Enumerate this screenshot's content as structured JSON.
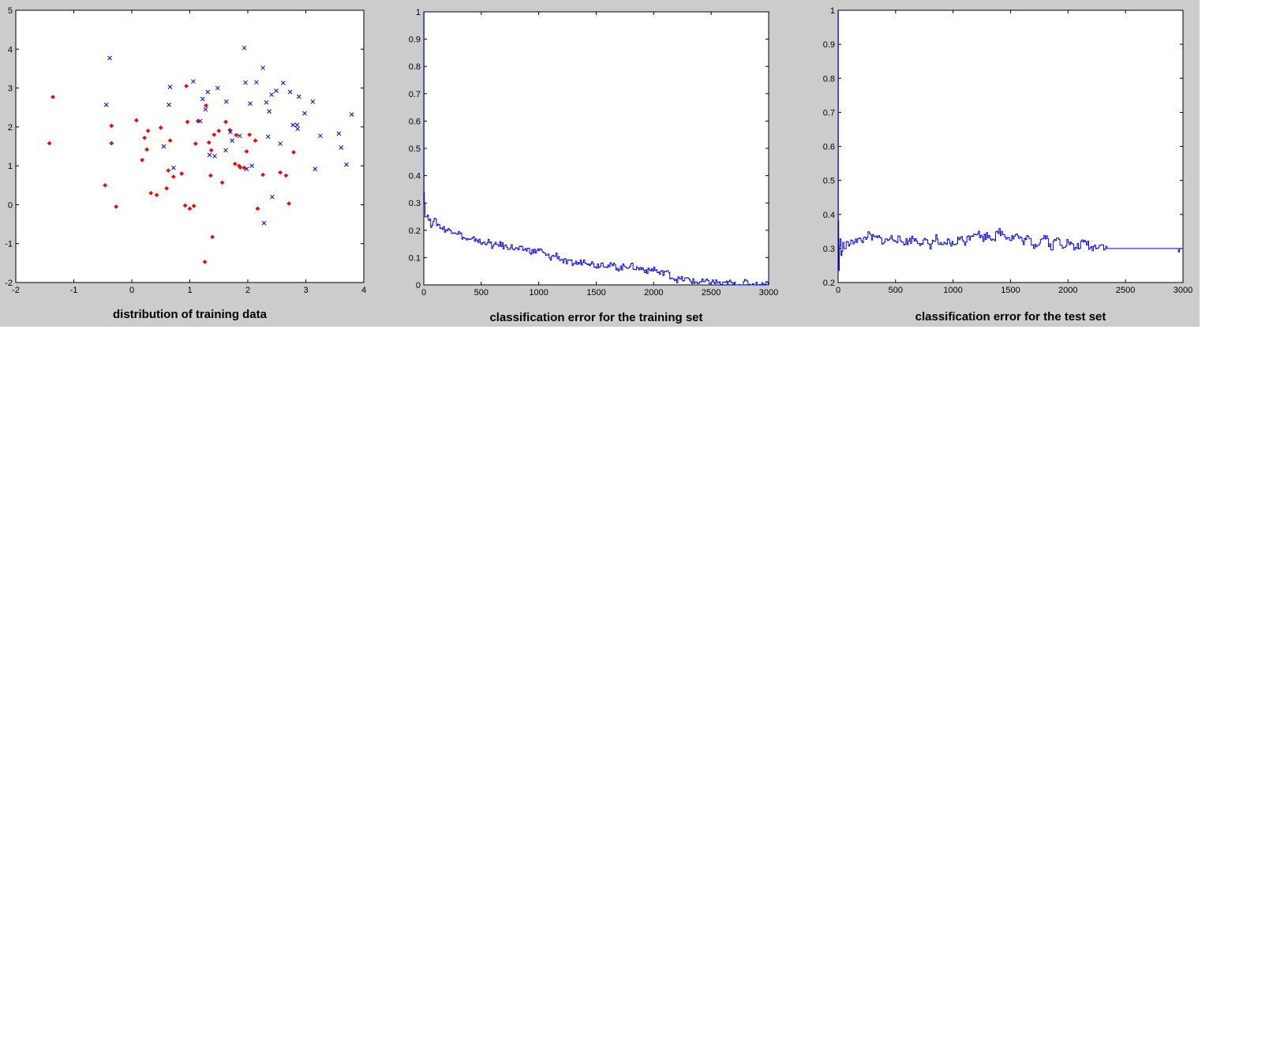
{
  "chart_data": [
    {
      "type": "scatter",
      "title": "",
      "xlabel": "distribution of training data",
      "ylabel": "",
      "xlim": [
        -2,
        4
      ],
      "ylim": [
        -2,
        5
      ],
      "xticks": [
        "-2",
        "-1",
        "0",
        "1",
        "2",
        "3",
        "4"
      ],
      "yticks": [
        "-2",
        "-1",
        "0",
        "1",
        "2",
        "3",
        "4",
        "5"
      ],
      "grid": false,
      "series": [
        {
          "marker": "dot",
          "color": "#ff0000",
          "points": [
            [
              -1.42,
              1.58
            ],
            [
              -1.36,
              2.77
            ],
            [
              -0.46,
              0.5
            ],
            [
              -0.35,
              2.03
            ],
            [
              -0.35,
              1.58
            ],
            [
              -0.27,
              -0.05
            ],
            [
              0.08,
              2.17
            ],
            [
              0.18,
              1.15
            ],
            [
              0.22,
              1.72
            ],
            [
              0.26,
              1.42
            ],
            [
              0.28,
              1.9
            ],
            [
              0.33,
              0.3
            ],
            [
              0.43,
              0.25
            ],
            [
              0.5,
              1.98
            ],
            [
              0.6,
              0.42
            ],
            [
              0.63,
              0.88
            ],
            [
              0.66,
              1.65
            ],
            [
              0.72,
              0.72
            ],
            [
              0.86,
              0.8
            ],
            [
              0.92,
              -0.02
            ],
            [
              0.94,
              3.05
            ],
            [
              0.96,
              2.13
            ],
            [
              1.0,
              -0.1
            ],
            [
              1.07,
              -0.03
            ],
            [
              1.1,
              1.57
            ],
            [
              1.14,
              2.15
            ],
            [
              1.26,
              -1.47
            ],
            [
              1.28,
              2.55
            ],
            [
              1.33,
              1.6
            ],
            [
              1.36,
              0.75
            ],
            [
              1.37,
              1.4
            ],
            [
              1.39,
              -0.83
            ],
            [
              1.42,
              1.8
            ],
            [
              1.5,
              1.9
            ],
            [
              1.56,
              0.57
            ],
            [
              1.62,
              2.13
            ],
            [
              1.69,
              1.92
            ],
            [
              1.78,
              1.05
            ],
            [
              1.8,
              1.79
            ],
            [
              1.85,
              1.0
            ],
            [
              1.87,
              0.96
            ],
            [
              1.94,
              0.95
            ],
            [
              1.98,
              1.37
            ],
            [
              2.03,
              1.8
            ],
            [
              2.13,
              1.65
            ],
            [
              2.17,
              -0.1
            ],
            [
              2.26,
              0.77
            ],
            [
              2.56,
              0.83
            ],
            [
              2.66,
              0.75
            ],
            [
              2.71,
              0.03
            ],
            [
              2.79,
              1.35
            ]
          ]
        },
        {
          "marker": "x",
          "color": "#0000ff",
          "points": [
            [
              -0.44,
              2.57
            ],
            [
              -0.38,
              3.77
            ],
            [
              0.55,
              1.5
            ],
            [
              0.64,
              2.57
            ],
            [
              0.66,
              3.03
            ],
            [
              0.72,
              0.95
            ],
            [
              1.06,
              3.17
            ],
            [
              1.18,
              2.15
            ],
            [
              1.22,
              2.72
            ],
            [
              1.27,
              2.45
            ],
            [
              1.31,
              2.9
            ],
            [
              1.34,
              1.28
            ],
            [
              1.43,
              1.25
            ],
            [
              1.48,
              3.0
            ],
            [
              1.62,
              1.4
            ],
            [
              1.63,
              2.65
            ],
            [
              1.7,
              1.87
            ],
            [
              1.73,
              1.65
            ],
            [
              1.86,
              1.77
            ],
            [
              1.94,
              4.03
            ],
            [
              1.96,
              3.14
            ],
            [
              1.98,
              0.92
            ],
            [
              2.04,
              2.6
            ],
            [
              2.07,
              1.0
            ],
            [
              2.15,
              3.15
            ],
            [
              2.26,
              3.52
            ],
            [
              2.28,
              -0.47
            ],
            [
              2.32,
              2.63
            ],
            [
              2.35,
              1.75
            ],
            [
              2.37,
              2.4
            ],
            [
              2.41,
              2.83
            ],
            [
              2.42,
              0.2
            ],
            [
              2.49,
              2.93
            ],
            [
              2.56,
              1.57
            ],
            [
              2.61,
              3.13
            ],
            [
              2.73,
              2.9
            ],
            [
              2.78,
              2.05
            ],
            [
              2.85,
              2.05
            ],
            [
              2.86,
              1.95
            ],
            [
              2.88,
              2.78
            ],
            [
              2.98,
              2.35
            ],
            [
              3.12,
              2.65
            ],
            [
              3.16,
              0.92
            ],
            [
              3.25,
              1.77
            ],
            [
              3.57,
              1.83
            ],
            [
              3.61,
              1.47
            ],
            [
              3.7,
              1.03
            ],
            [
              3.79,
              2.32
            ]
          ]
        }
      ]
    },
    {
      "type": "line",
      "title": "",
      "xlabel": "classification error for the training set",
      "ylabel": "",
      "xlim": [
        0,
        3000
      ],
      "ylim": [
        0,
        1
      ],
      "xticks": [
        "0",
        "500",
        "1000",
        "1500",
        "2000",
        "2500",
        "3000"
      ],
      "yticks": [
        "0",
        "0.1",
        "0.2",
        "0.3",
        "0.4",
        "0.5",
        "0.6",
        "0.7",
        "0.8",
        "0.9",
        "1"
      ],
      "grid": false,
      "series": [
        {
          "color": "#0000ff",
          "x": [
            0,
            2,
            5,
            10,
            20,
            40,
            60,
            80,
            100,
            150,
            200,
            250,
            300,
            350,
            400,
            450,
            500,
            550,
            600,
            650,
            700,
            750,
            800,
            850,
            900,
            950,
            1000,
            1050,
            1100,
            1150,
            1200,
            1250,
            1300,
            1350,
            1400,
            1450,
            1500,
            1550,
            1600,
            1650,
            1700,
            1750,
            1800,
            1850,
            1900,
            1950,
            2000,
            2050,
            2100,
            2150,
            2200,
            2250,
            2300,
            2350,
            2400,
            2450,
            2500,
            2550,
            2600,
            2650,
            2700,
            2750,
            2800,
            2850,
            2900,
            2950,
            2995
          ],
          "y": [
            1.0,
            0.35,
            0.3,
            0.25,
            0.26,
            0.24,
            0.22,
            0.24,
            0.23,
            0.21,
            0.2,
            0.2,
            0.19,
            0.17,
            0.16,
            0.17,
            0.15,
            0.16,
            0.14,
            0.15,
            0.14,
            0.14,
            0.13,
            0.13,
            0.13,
            0.12,
            0.13,
            0.11,
            0.1,
            0.11,
            0.09,
            0.08,
            0.08,
            0.08,
            0.09,
            0.08,
            0.07,
            0.08,
            0.07,
            0.07,
            0.06,
            0.07,
            0.07,
            0.06,
            0.06,
            0.05,
            0.06,
            0.04,
            0.05,
            0.03,
            0.02,
            0.02,
            0.02,
            0.01,
            0.01,
            0.01,
            0.01,
            0.01,
            0.0,
            0.01,
            0.0,
            0.0,
            0.01,
            0.0,
            0.0,
            0.0,
            0.01
          ]
        }
      ]
    },
    {
      "type": "line",
      "title": "",
      "xlabel": "classification error for the test set",
      "ylabel": "",
      "xlim": [
        0,
        3000
      ],
      "ylim": [
        0.2,
        1
      ],
      "xticks": [
        "0",
        "500",
        "1000",
        "1500",
        "2000",
        "2500",
        "3000"
      ],
      "yticks": [
        "0.2",
        "0.3",
        "0.4",
        "0.5",
        "0.6",
        "0.7",
        "0.8",
        "0.9",
        "1"
      ],
      "grid": false,
      "series": [
        {
          "color": "#0000ff",
          "x": [
            0,
            2,
            5,
            10,
            15,
            25,
            40,
            60,
            80,
            100,
            150,
            200,
            250,
            300,
            350,
            400,
            450,
            500,
            550,
            600,
            650,
            700,
            750,
            800,
            850,
            900,
            950,
            1000,
            1050,
            1100,
            1150,
            1200,
            1250,
            1300,
            1350,
            1400,
            1450,
            1500,
            1550,
            1600,
            1650,
            1700,
            1750,
            1800,
            1850,
            1900,
            1950,
            2000,
            2050,
            2100,
            2150,
            2200,
            2250,
            2300,
            2330,
            2400,
            2600,
            2800,
            2950,
            2960,
            2970,
            3000
          ],
          "y": [
            1.0,
            0.38,
            0.24,
            0.3,
            0.32,
            0.29,
            0.31,
            0.3,
            0.32,
            0.31,
            0.33,
            0.32,
            0.34,
            0.33,
            0.33,
            0.32,
            0.33,
            0.33,
            0.32,
            0.32,
            0.33,
            0.32,
            0.32,
            0.31,
            0.33,
            0.3,
            0.32,
            0.31,
            0.33,
            0.32,
            0.34,
            0.35,
            0.33,
            0.34,
            0.33,
            0.35,
            0.34,
            0.33,
            0.34,
            0.32,
            0.33,
            0.31,
            0.32,
            0.34,
            0.3,
            0.33,
            0.31,
            0.32,
            0.3,
            0.31,
            0.32,
            0.3,
            0.31,
            0.31,
            0.3,
            0.3,
            0.3,
            0.3,
            0.3,
            0.29,
            0.3,
            0.3
          ]
        }
      ]
    }
  ]
}
